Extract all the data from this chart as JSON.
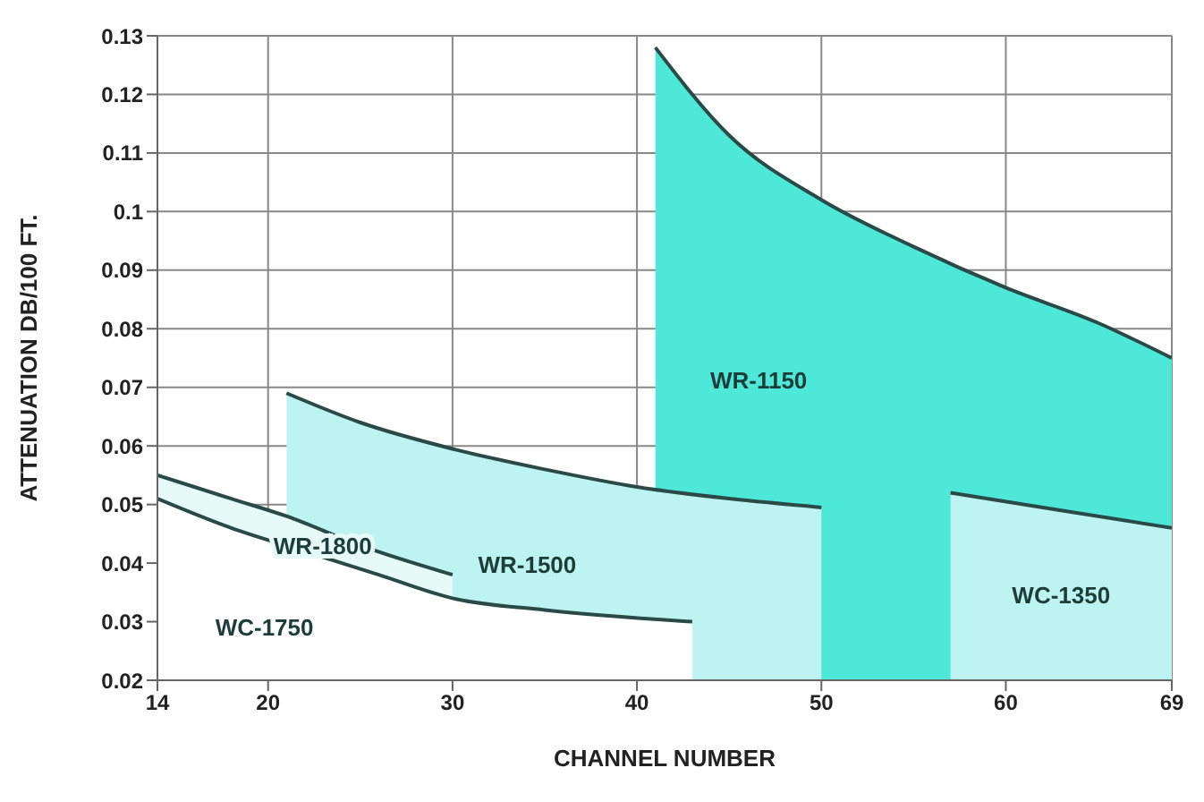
{
  "chart_data": {
    "type": "area",
    "xlabel": "CHANNEL NUMBER",
    "ylabel": "ATTENUATION   DB/100 FT.",
    "xlim": [
      14,
      69
    ],
    "xticks": [
      14,
      20,
      30,
      40,
      50,
      60,
      69
    ],
    "ylim": [
      0.02,
      0.13
    ],
    "yticks": [
      0.02,
      0.03,
      0.04,
      0.05,
      0.06,
      0.07,
      0.08,
      0.09,
      0.1,
      0.11,
      0.12,
      0.13
    ],
    "grid": true,
    "series": [
      {
        "name": "WR-1150",
        "color": "#4de8d8",
        "x": [
          41,
          45,
          50,
          55,
          60,
          65,
          69
        ],
        "values": [
          0.128,
          0.113,
          0.102,
          0.094,
          0.087,
          0.081,
          0.075
        ]
      },
      {
        "name": "WR-1500",
        "color": "#bdf3f0",
        "x": [
          21,
          25,
          30,
          35,
          40,
          45,
          50
        ],
        "values": [
          0.069,
          0.064,
          0.0595,
          0.056,
          0.053,
          0.051,
          0.0495
        ]
      },
      {
        "name": "WR-1800",
        "color": "#e6faf8",
        "x": [
          14,
          18,
          21,
          25,
          30
        ],
        "values": [
          0.055,
          0.051,
          0.048,
          0.043,
          0.038
        ]
      },
      {
        "name": "WC-1750",
        "color": "#ffffff",
        "x": [
          14,
          18,
          22,
          26,
          30,
          35,
          43
        ],
        "values": [
          0.051,
          0.046,
          0.042,
          0.038,
          0.034,
          0.032,
          0.03
        ]
      },
      {
        "name": "WC-1350",
        "color": "#bdf3f0",
        "x": [
          57,
          63,
          69
        ],
        "values": [
          0.052,
          0.049,
          0.046
        ]
      }
    ]
  }
}
